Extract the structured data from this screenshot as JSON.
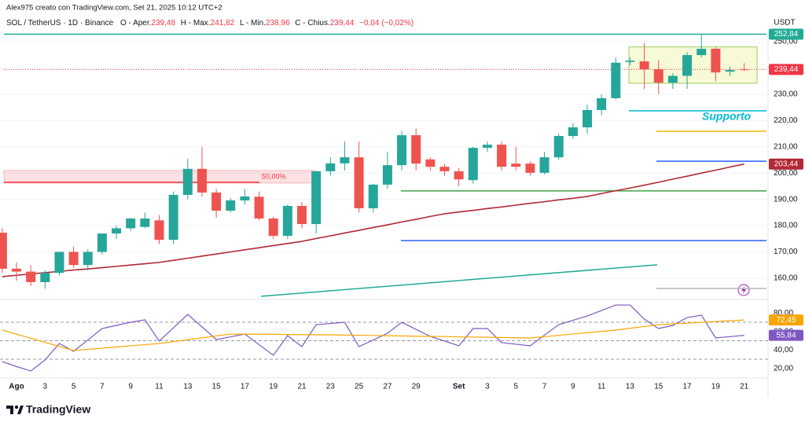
{
  "header": {
    "credit": "Alex975 creato con TradingView.com, Set 21, 2025 10:12 UTC+2",
    "symbol": "SOL / TetherUS · 1D · Binance",
    "ohlc": [
      {
        "label": "O - Aper.",
        "value": "239,48"
      },
      {
        "label": "H - Max.",
        "value": "241,82"
      },
      {
        "label": "L - Min.",
        "value": "238,96"
      },
      {
        "label": "C - Chius.",
        "value": "239,44"
      }
    ],
    "change": "−0,04 (−0,02%)"
  },
  "footer": {
    "brand": "TradingView"
  },
  "chart_data": [
    {
      "type": "candlestick",
      "currency": "USDT",
      "categories": [
        null,
        "Ago",
        null,
        "3",
        null,
        "5",
        null,
        "7",
        null,
        "9",
        null,
        "11",
        null,
        "13",
        null,
        "15",
        null,
        "17",
        null,
        "19",
        null,
        "21",
        null,
        "23",
        null,
        "25",
        null,
        "27",
        null,
        "29",
        null,
        null,
        "Set",
        null,
        "3",
        null,
        "5",
        null,
        "7",
        null,
        "9",
        null,
        "11",
        null,
        "13",
        null,
        "15",
        null,
        "17",
        null,
        "19",
        null,
        "21"
      ],
      "open": [
        177.3,
        163.6,
        162.5,
        158.5,
        162,
        170,
        165,
        170,
        177,
        179,
        179.5,
        182,
        174.6,
        191.7,
        201.6,
        192.6,
        185.7,
        189.6,
        191,
        182.7,
        176.1,
        187.5,
        180.6,
        200.7,
        203.7,
        206,
        186.6,
        195.6,
        203,
        214.4,
        205.2,
        202.4,
        200.7,
        197.3,
        209.6,
        210.8,
        203.6,
        203.6,
        200.1,
        206,
        214.1,
        217.4,
        224,
        228.5,
        242.3,
        242.5,
        239.5,
        234.4,
        237,
        244.9,
        247.3,
        238.6,
        239.48
      ],
      "high": [
        179,
        166,
        165,
        163,
        170,
        172,
        171,
        177,
        180,
        183,
        185,
        184,
        193,
        205.5,
        210,
        194,
        190.5,
        194,
        193,
        183.5,
        188,
        189,
        201,
        206,
        212,
        212,
        196,
        208,
        216,
        217,
        206,
        203.5,
        202,
        210,
        212,
        212,
        210,
        204.5,
        208,
        215,
        219,
        226,
        230,
        244,
        244,
        249.4,
        243,
        238,
        246,
        252.8,
        248,
        240.5,
        241.82
      ],
      "low": [
        162,
        159,
        157,
        156,
        161,
        164,
        163,
        169,
        175,
        178,
        179,
        173,
        173,
        190,
        191,
        183,
        185,
        188,
        182,
        175,
        175,
        179,
        177,
        199,
        201,
        185,
        185,
        194,
        201,
        201,
        201,
        199,
        195,
        196,
        208,
        201,
        201,
        199,
        199.5,
        205,
        213,
        215,
        222,
        228,
        241,
        232,
        230,
        232,
        232,
        244,
        235,
        237,
        238.96
      ],
      "close": [
        163.6,
        162.5,
        158.5,
        162,
        170,
        165,
        170,
        177,
        179,
        182.7,
        182.7,
        174.6,
        191.7,
        201.6,
        192.6,
        185.7,
        189.6,
        191.1,
        182.7,
        176.1,
        187.5,
        180.6,
        200.7,
        203.7,
        206,
        186.6,
        195.6,
        203,
        214.4,
        203.6,
        202.4,
        200.7,
        197.6,
        209.6,
        210.8,
        202.4,
        202.4,
        200.1,
        206,
        214.1,
        217.4,
        224,
        228.5,
        242,
        242.8,
        239.5,
        234.4,
        237,
        244.9,
        247.3,
        238.3,
        239.2,
        239.44
      ],
      "up_color": "#26a69a",
      "down_color": "#ef5350",
      "ylim": [
        152.8,
        253.9
      ],
      "yticks": [
        {
          "value": 160,
          "label": "160,00"
        },
        {
          "value": 170,
          "label": "170,00"
        },
        {
          "value": 180,
          "label": "180,00"
        },
        {
          "value": 190,
          "label": "190,00"
        },
        {
          "value": 200,
          "label": "200,00"
        },
        {
          "value": 210,
          "label": "210,00"
        },
        {
          "value": 220,
          "label": "220,00"
        },
        {
          "value": 230,
          "label": "230,00"
        },
        {
          "value": 240,
          "label": "240,00"
        },
        {
          "value": 250,
          "label": "250,00"
        }
      ],
      "grid": true,
      "moving_average": {
        "color": "#b22833",
        "values": [
          160.6,
          161.1,
          161.6,
          162.1,
          162.6,
          163.1,
          163.5,
          164.0,
          164.5,
          165.0,
          165.5,
          166.0,
          166.8,
          167.6,
          168.4,
          169.2,
          170.0,
          170.8,
          171.6,
          172.4,
          173.2,
          174.0,
          175.1,
          176.1,
          177.2,
          178.2,
          179.3,
          180.3,
          181.4,
          182.4,
          183.5,
          184.5,
          185.2,
          185.8,
          186.5,
          187.1,
          187.8,
          188.5,
          189.1,
          189.8,
          190.4,
          191.1,
          192.2,
          193.3,
          194.3,
          195.4,
          196.5,
          197.7,
          198.8,
          200.0,
          201.1,
          202.3,
          203.44
        ]
      },
      "levels": [
        {
          "value": 252.84,
          "color": "#22ab94"
        },
        {
          "value": 239.44,
          "color": "#f23645",
          "dotted": true
        },
        {
          "value": 223.7,
          "color": "#00bcd4"
        },
        {
          "value": 215.9,
          "color": "#f5b700"
        },
        {
          "value": 204.5,
          "color": "#2962ff"
        },
        {
          "value": 193.2,
          "color": "#43a047"
        },
        {
          "value": 174.3,
          "color": "#2962ff"
        },
        {
          "value": 156.1,
          "color": "#b2b5be"
        }
      ],
      "trend_line": {
        "from": 153.1,
        "to": 165.1,
        "color": "#22ab94"
      },
      "zone": {
        "low": 196.2,
        "high": 201,
        "line": 196.5,
        "label": "50,00%",
        "color": "#f23645"
      },
      "box": {
        "low": 234.2,
        "high": 248,
        "color": "#e8f08a"
      },
      "annotation": {
        "text": "Supporto",
        "color": "#00bcd4"
      },
      "price_labels": [
        {
          "value": 252.84,
          "label": "252,84",
          "color": "#22ab94"
        },
        {
          "value": 239.44,
          "label": "239,44",
          "color": "#f23645"
        },
        {
          "value": 203.44,
          "label": "203,44",
          "color": "#b22833"
        }
      ]
    },
    {
      "type": "line",
      "series": [
        {
          "color": "#7e57c2",
          "values": [
            27.4,
            22,
            17.2,
            29.1,
            47,
            38.5,
            50.8,
            63.2,
            66.6,
            70,
            72.6,
            49.6,
            64,
            78.5,
            65,
            51.3,
            54.2,
            57.2,
            45.7,
            34.3,
            55.5,
            43.6,
            67.4,
            68.7,
            70,
            43.6,
            50.8,
            58.1,
            70,
            62.3,
            54.7,
            49.6,
            44.5,
            63.2,
            63.2,
            47.9,
            46.2,
            44.5,
            56,
            67.4,
            72.1,
            76.8,
            82.7,
            88.7,
            88.7,
            73.4,
            63.2,
            66.6,
            75.1,
            77.7,
            53,
            54.4,
            55.84
          ]
        },
        {
          "color": "#f7a600",
          "values": [
            61.5,
            57.1,
            52.7,
            48.2,
            43.8,
            39.4,
            40.7,
            41.9,
            43.2,
            44.5,
            45.7,
            47,
            49,
            51.1,
            53.1,
            55.2,
            57.2,
            57.1,
            57,
            56.9,
            56.7,
            56.6,
            56.5,
            56.4,
            56.2,
            55.9,
            55.7,
            55.4,
            55.2,
            54.9,
            54.7,
            54.5,
            54.2,
            54,
            53.7,
            53.5,
            53.2,
            53,
            54.4,
            55.8,
            57.3,
            58.7,
            60.1,
            61.5,
            63.5,
            65.4,
            67.4,
            68.2,
            69.1,
            69.9,
            70.8,
            71.6,
            72.45
          ]
        }
      ],
      "ylim": [
        10.4,
        93
      ],
      "yticks": [
        {
          "value": 20,
          "label": "20,00"
        },
        {
          "value": 40,
          "label": "40,00"
        },
        {
          "value": 60,
          "label": "60,00"
        },
        {
          "value": 80,
          "label": "80,00"
        }
      ],
      "levels": [
        70,
        50,
        30
      ],
      "price_labels": [
        {
          "value": 72.45,
          "label": "72,45",
          "color": "#f7a600"
        },
        {
          "value": 55.84,
          "label": "55,84",
          "color": "#7e57c2"
        }
      ]
    }
  ]
}
